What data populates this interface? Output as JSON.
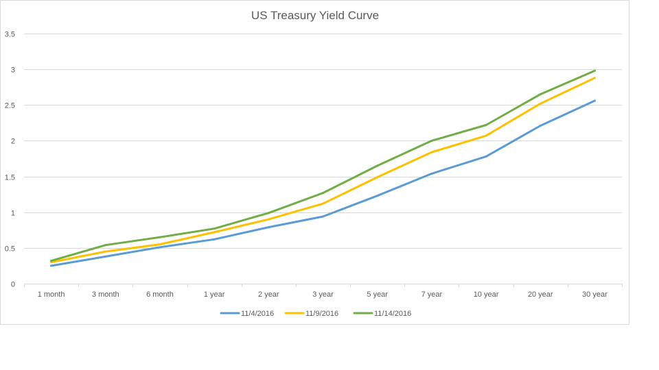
{
  "chart_data": {
    "type": "line",
    "title": "US Treasury Yield Curve",
    "xlabel": "",
    "ylabel": "",
    "categories": [
      "1 month",
      "3 month",
      "6 month",
      "1 year",
      "2 year",
      "3 year",
      "5 year",
      "7 year",
      "10 year",
      "20 year",
      "30 year"
    ],
    "ylim": [
      0,
      3.5
    ],
    "yticks": [
      0,
      0.5,
      1,
      1.5,
      2,
      2.5,
      3,
      3.5
    ],
    "ytick_labels": [
      "0",
      "0.5",
      "1",
      "1.5",
      "2",
      "2.5",
      "3",
      "3.5"
    ],
    "grid": true,
    "legend_position": "bottom",
    "series": [
      {
        "name": "11/4/2016",
        "color": "#5b9bd5",
        "values": [
          0.25,
          0.38,
          0.51,
          0.62,
          0.79,
          0.94,
          1.23,
          1.54,
          1.78,
          2.21,
          2.56
        ]
      },
      {
        "name": "11/9/2016",
        "color": "#ffc000",
        "values": [
          0.3,
          0.45,
          0.55,
          0.72,
          0.9,
          1.12,
          1.49,
          1.84,
          2.07,
          2.52,
          2.88
        ]
      },
      {
        "name": "11/14/2016",
        "color": "#70ad47",
        "values": [
          0.32,
          0.54,
          0.65,
          0.77,
          0.99,
          1.27,
          1.65,
          2.0,
          2.22,
          2.65,
          2.98
        ]
      }
    ]
  }
}
